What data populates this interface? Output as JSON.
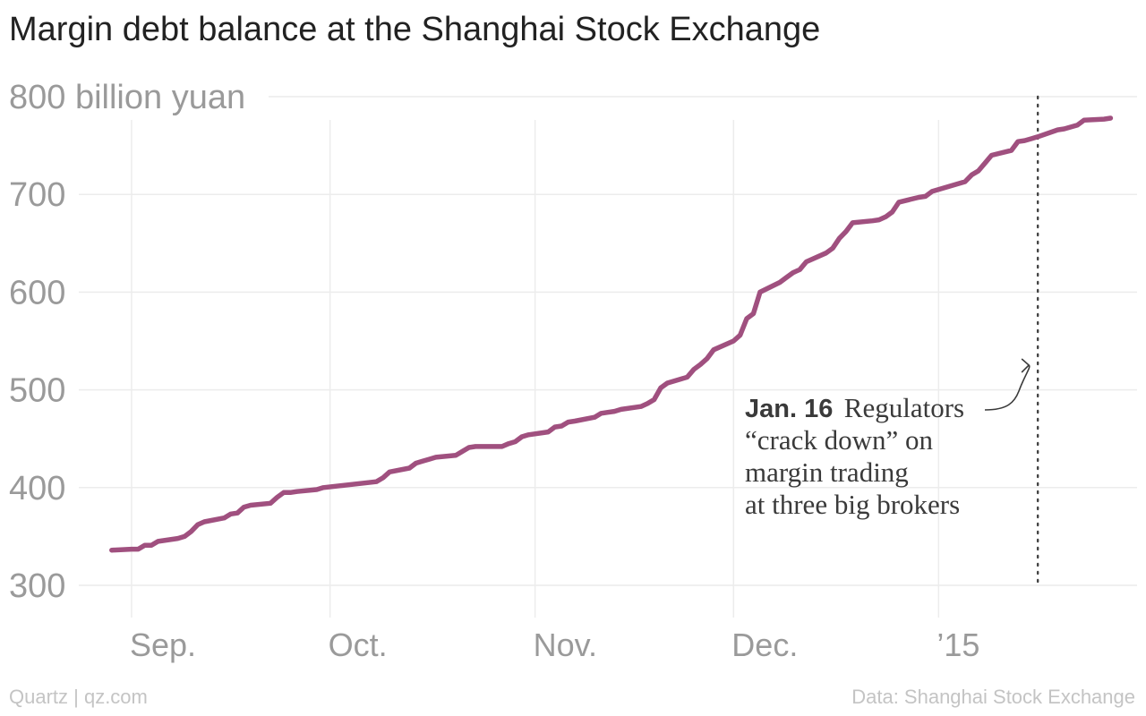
{
  "header": {
    "title": "Margin debt balance at the Shanghai Stock Exchange"
  },
  "footer": {
    "credit_left": "Quartz | qz.com",
    "credit_right": "Data: Shanghai Stock Exchange"
  },
  "colors": {
    "line": "#a0507f",
    "grid": "#ececec",
    "tick_text": "#9a9a9a",
    "annotation": "#3a3a3a"
  },
  "chart_data": {
    "type": "line",
    "title": "Margin debt balance at the Shanghai Stock Exchange",
    "ylabel": "billion yuan",
    "ylim": [
      300,
      800
    ],
    "y_ticks": [
      {
        "value": 800,
        "label": "800 billion yuan"
      },
      {
        "value": 700,
        "label": "700"
      },
      {
        "value": 600,
        "label": "600"
      },
      {
        "value": 500,
        "label": "500"
      },
      {
        "value": 400,
        "label": "400"
      },
      {
        "value": 300,
        "label": "300"
      }
    ],
    "x_range": [
      "2014-08-27",
      "2015-01-31"
    ],
    "x_ticks": [
      {
        "date": "2014-09-01",
        "label": "Sep."
      },
      {
        "date": "2014-10-01",
        "label": "Oct."
      },
      {
        "date": "2014-11-01",
        "label": "Nov."
      },
      {
        "date": "2014-12-01",
        "label": "Dec."
      },
      {
        "date": "2015-01-01",
        "label": "’15"
      }
    ],
    "grid": true,
    "series": [
      {
        "points": [
          [
            "2014-08-29",
            336
          ],
          [
            "2014-09-01",
            337
          ],
          [
            "2014-09-02",
            337
          ],
          [
            "2014-09-03",
            341
          ],
          [
            "2014-09-04",
            341
          ],
          [
            "2014-09-05",
            345
          ],
          [
            "2014-09-08",
            348
          ],
          [
            "2014-09-09",
            350
          ],
          [
            "2014-09-10",
            355
          ],
          [
            "2014-09-11",
            362
          ],
          [
            "2014-09-12",
            365
          ],
          [
            "2014-09-15",
            369
          ],
          [
            "2014-09-16",
            373
          ],
          [
            "2014-09-17",
            374
          ],
          [
            "2014-09-18",
            380
          ],
          [
            "2014-09-19",
            382
          ],
          [
            "2014-09-22",
            384
          ],
          [
            "2014-09-23",
            390
          ],
          [
            "2014-09-24",
            395
          ],
          [
            "2014-09-25",
            395
          ],
          [
            "2014-09-26",
            396
          ],
          [
            "2014-09-29",
            398
          ],
          [
            "2014-09-30",
            400
          ],
          [
            "2014-10-08",
            406
          ],
          [
            "2014-10-09",
            410
          ],
          [
            "2014-10-10",
            416
          ],
          [
            "2014-10-13",
            420
          ],
          [
            "2014-10-14",
            425
          ],
          [
            "2014-10-15",
            427
          ],
          [
            "2014-10-16",
            429
          ],
          [
            "2014-10-17",
            431
          ],
          [
            "2014-10-20",
            433
          ],
          [
            "2014-10-21",
            437
          ],
          [
            "2014-10-22",
            441
          ],
          [
            "2014-10-23",
            442
          ],
          [
            "2014-10-24",
            442
          ],
          [
            "2014-10-27",
            442
          ],
          [
            "2014-10-28",
            445
          ],
          [
            "2014-10-29",
            447
          ],
          [
            "2014-10-30",
            452
          ],
          [
            "2014-10-31",
            454
          ],
          [
            "2014-11-03",
            457
          ],
          [
            "2014-11-04",
            462
          ],
          [
            "2014-11-05",
            463
          ],
          [
            "2014-11-06",
            467
          ],
          [
            "2014-11-07",
            468
          ],
          [
            "2014-11-10",
            472
          ],
          [
            "2014-11-11",
            476
          ],
          [
            "2014-11-12",
            477
          ],
          [
            "2014-11-13",
            478
          ],
          [
            "2014-11-14",
            480
          ],
          [
            "2014-11-17",
            483
          ],
          [
            "2014-11-18",
            486
          ],
          [
            "2014-11-19",
            490
          ],
          [
            "2014-11-20",
            502
          ],
          [
            "2014-11-21",
            507
          ],
          [
            "2014-11-24",
            513
          ],
          [
            "2014-11-25",
            521
          ],
          [
            "2014-11-26",
            526
          ],
          [
            "2014-11-27",
            532
          ],
          [
            "2014-11-28",
            541
          ],
          [
            "2014-12-01",
            550
          ],
          [
            "2014-12-02",
            556
          ],
          [
            "2014-12-03",
            573
          ],
          [
            "2014-12-04",
            578
          ],
          [
            "2014-12-05",
            600
          ],
          [
            "2014-12-08",
            610
          ],
          [
            "2014-12-09",
            615
          ],
          [
            "2014-12-10",
            620
          ],
          [
            "2014-12-11",
            623
          ],
          [
            "2014-12-12",
            631
          ],
          [
            "2014-12-15",
            640
          ],
          [
            "2014-12-16",
            645
          ],
          [
            "2014-12-17",
            655
          ],
          [
            "2014-12-18",
            662
          ],
          [
            "2014-12-19",
            671
          ],
          [
            "2014-12-22",
            673
          ],
          [
            "2014-12-23",
            674
          ],
          [
            "2014-12-24",
            677
          ],
          [
            "2014-12-25",
            682
          ],
          [
            "2014-12-26",
            692
          ],
          [
            "2014-12-29",
            697
          ],
          [
            "2014-12-30",
            698
          ],
          [
            "2014-12-31",
            703
          ],
          [
            "2015-01-05",
            713
          ],
          [
            "2015-01-06",
            720
          ],
          [
            "2015-01-07",
            724
          ],
          [
            "2015-01-08",
            732
          ],
          [
            "2015-01-09",
            740
          ],
          [
            "2015-01-12",
            745
          ],
          [
            "2015-01-13",
            754
          ],
          [
            "2015-01-14",
            755
          ],
          [
            "2015-01-15",
            757
          ],
          [
            "2015-01-16",
            759
          ],
          [
            "2015-01-19",
            766
          ],
          [
            "2015-01-20",
            767
          ],
          [
            "2015-01-21",
            769
          ],
          [
            "2015-01-22",
            771
          ],
          [
            "2015-01-23",
            776
          ],
          [
            "2015-01-26",
            777
          ],
          [
            "2015-01-27",
            778
          ]
        ]
      }
    ],
    "event_marker": {
      "date": "2015-01-16",
      "style": "dotted"
    },
    "annotation": {
      "date_label": "Jan. 16",
      "lines": [
        "Regulators",
        "“crack down” on",
        "margin trading",
        "at three big brokers"
      ]
    }
  }
}
